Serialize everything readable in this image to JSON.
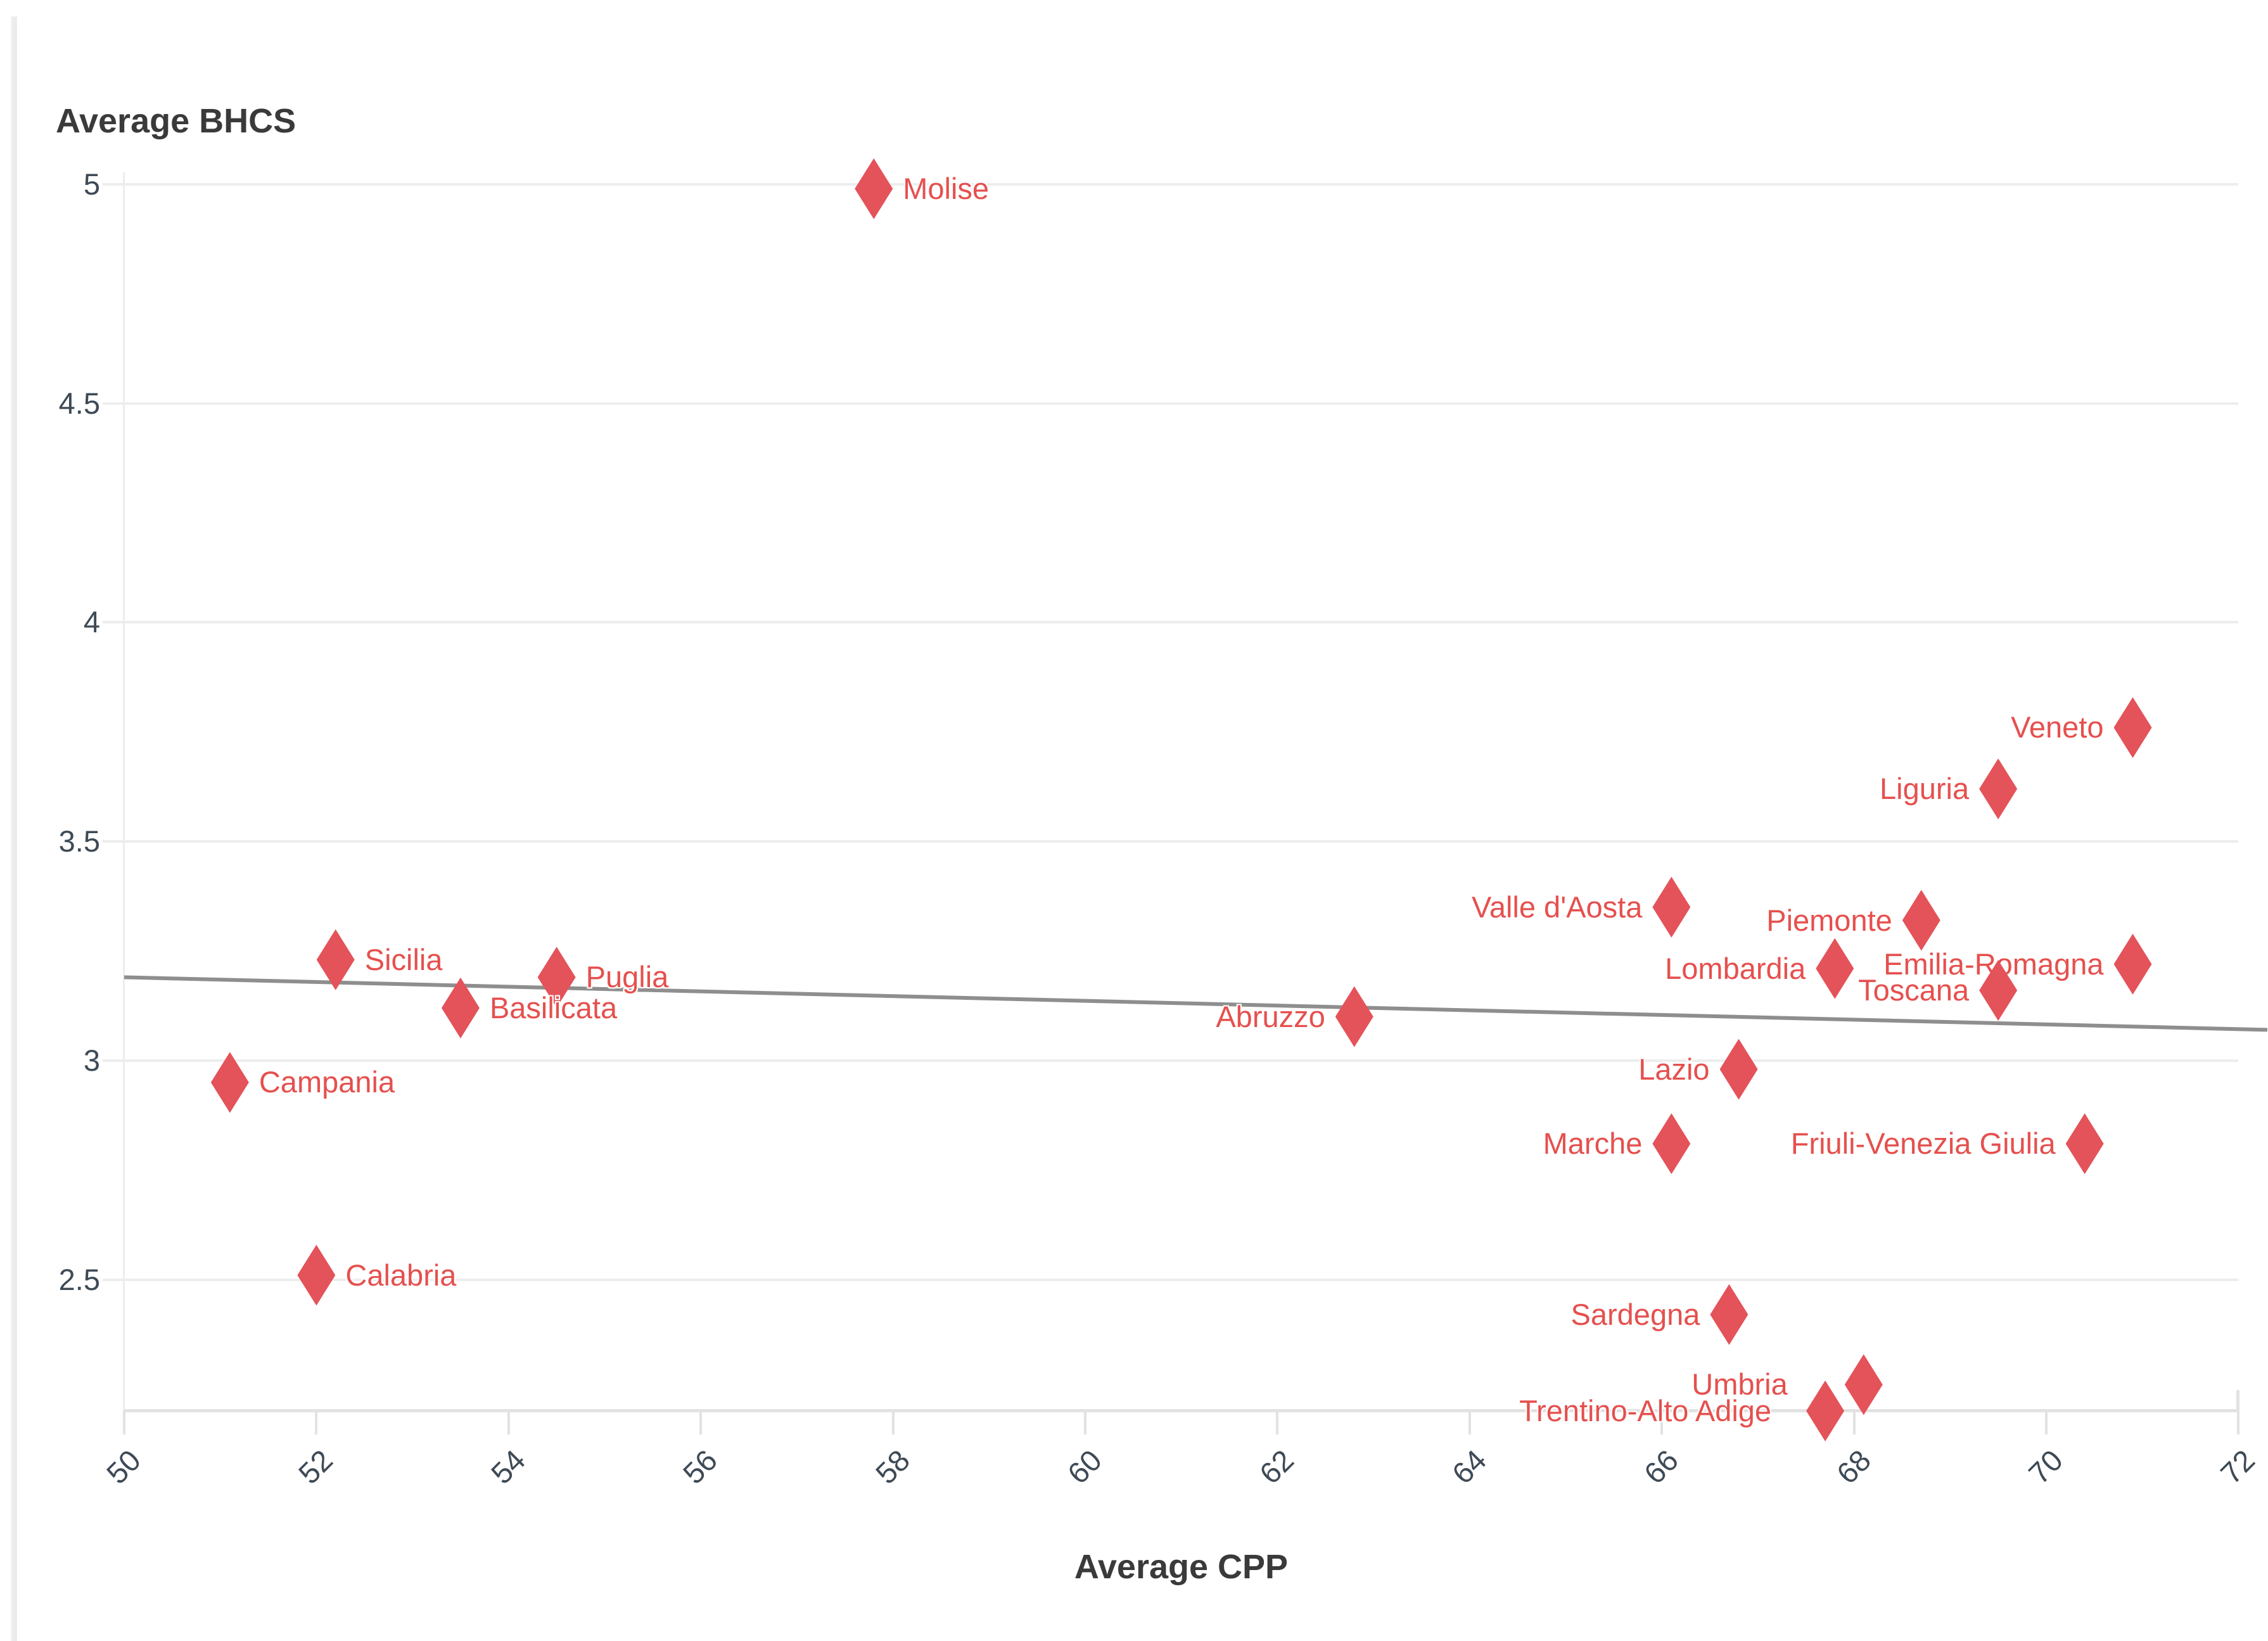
{
  "chart_data": {
    "type": "scatter",
    "y_axis_title": "Average BHCS",
    "x_axis_title": "Average CPP",
    "x_ticks": [
      50,
      52,
      54,
      56,
      58,
      60,
      62,
      64,
      66,
      68,
      70,
      72
    ],
    "y_ticks": [
      "5",
      "4.5",
      "4",
      "3.5",
      "3",
      "2.5"
    ],
    "xlim": [
      50,
      72
    ],
    "ylim": [
      2.2,
      5.05
    ],
    "grid": "horizontal",
    "legend": "none",
    "marker_shape": "diamond",
    "points": [
      {
        "label": "Molise",
        "x": 57.8,
        "y": 4.99,
        "label_side": "right",
        "label_gap": 16
      },
      {
        "label": "Veneto",
        "x": 70.9,
        "y": 3.76,
        "label_side": "left",
        "label_gap": 16
      },
      {
        "label": "Liguria",
        "x": 69.5,
        "y": 3.62,
        "label_side": "left",
        "label_gap": 16
      },
      {
        "label": "Valle d'Aosta",
        "x": 66.1,
        "y": 3.35,
        "label_side": "left",
        "label_gap": 16
      },
      {
        "label": "Piemonte",
        "x": 68.7,
        "y": 3.32,
        "label_side": "left",
        "label_gap": 16
      },
      {
        "label": "Lombardia",
        "x": 67.8,
        "y": 3.21,
        "label_side": "left",
        "label_gap": 16
      },
      {
        "label": "Emilia-Romagna",
        "x": 70.9,
        "y": 3.22,
        "label_side": "left",
        "label_gap": 16
      },
      {
        "label": "Toscana",
        "x": 69.5,
        "y": 3.16,
        "label_side": "left",
        "label_gap": 16
      },
      {
        "label": "Abruzzo",
        "x": 62.8,
        "y": 3.1,
        "label_side": "left",
        "label_gap": 16
      },
      {
        "label": "Sicilia",
        "x": 52.2,
        "y": 3.23,
        "label_side": "right",
        "label_gap": 16
      },
      {
        "label": "Puglia",
        "x": 54.5,
        "y": 3.19,
        "label_side": "right",
        "label_gap": 16
      },
      {
        "label": "Basilicata",
        "x": 53.5,
        "y": 3.12,
        "label_side": "right",
        "label_gap": 16
      },
      {
        "label": "Campania",
        "x": 51.1,
        "y": 2.95,
        "label_side": "right",
        "label_gap": 16
      },
      {
        "label": "Lazio",
        "x": 66.8,
        "y": 2.98,
        "label_side": "left",
        "label_gap": 16
      },
      {
        "label": "Marche",
        "x": 66.1,
        "y": 2.81,
        "label_side": "left",
        "label_gap": 16
      },
      {
        "label": "Friuli-Venezia Giulia",
        "x": 70.4,
        "y": 2.81,
        "label_side": "left",
        "label_gap": 16
      },
      {
        "label": "Calabria",
        "x": 52.0,
        "y": 2.51,
        "label_side": "right",
        "label_gap": 16
      },
      {
        "label": "Sardegna",
        "x": 66.7,
        "y": 2.42,
        "label_side": "left",
        "label_gap": 16
      },
      {
        "label": "Umbria",
        "x": 68.1,
        "y": 2.26,
        "label_side": "left",
        "label_gap": 90
      },
      {
        "label": "Trentino-Alto Adige",
        "x": 67.7,
        "y": 2.2,
        "label_side": "left",
        "label_gap": 55
      }
    ],
    "trend_line": {
      "x1": 50.0,
      "y1": 3.19,
      "x2": 72.3,
      "y2": 3.07
    },
    "colors": {
      "marker": "#e4525a",
      "point_label": "#e5504e",
      "grid": "#ededed",
      "axis": "#e2e2e2",
      "tick_text": "#3e4a55",
      "title_text": "#3a3a3a",
      "trend": "#8e8e8e",
      "background": "#ffffff"
    }
  }
}
